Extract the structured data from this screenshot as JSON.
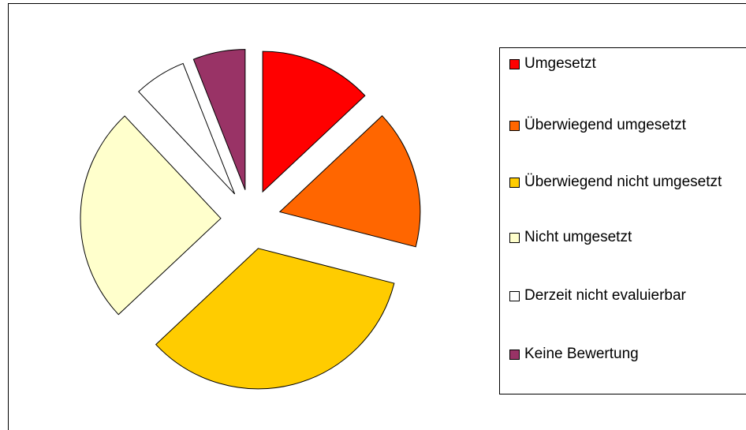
{
  "chart_data": {
    "type": "pie",
    "categories": [
      "Umgesetzt",
      "Überwiegend umgesetzt",
      "Überwiegend nicht umgesetzt",
      "Nicht umgesetzt",
      "Derzeit nicht evaluierbar",
      "Keine Bewertung"
    ],
    "values": [
      13,
      16,
      34,
      25,
      6,
      6
    ],
    "colors": [
      "#ff0000",
      "#ff6600",
      "#ffcc00",
      "#ffffcc",
      "#ffffff",
      "#993366"
    ],
    "exploded": true,
    "legend": "right"
  }
}
